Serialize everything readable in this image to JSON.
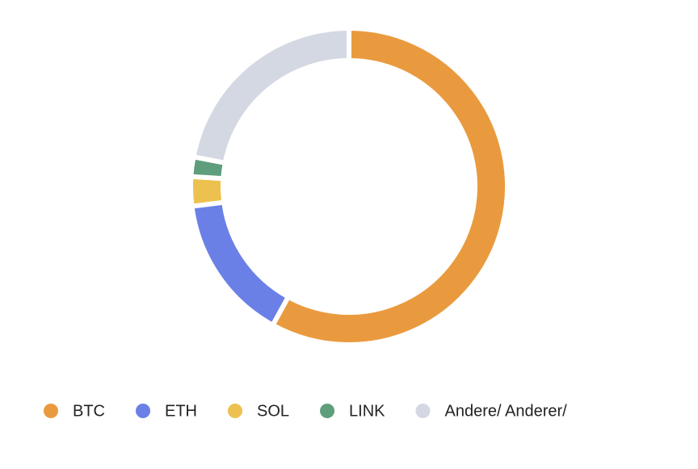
{
  "chart_data": {
    "type": "pie",
    "donut": true,
    "categories": [
      "BTC",
      "ETH",
      "SOL",
      "LINK",
      "Andere/ Anderer/"
    ],
    "values": [
      58,
      15,
      3,
      2,
      22
    ],
    "colors": [
      "#ea9a3e",
      "#6b80e6",
      "#edc14f",
      "#5e9e7d",
      "#d3d8e3"
    ],
    "legend": "bottom"
  }
}
